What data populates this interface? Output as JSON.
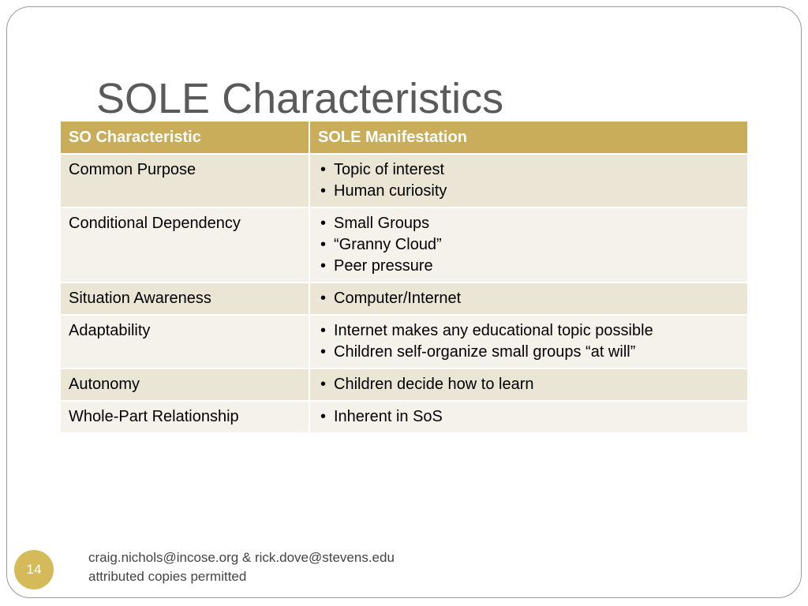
{
  "slide": {
    "title": "SOLE Characteristics",
    "page_number": "14",
    "footer_line1": "craig.nichols@incose.org & rick.dove@stevens.edu",
    "footer_line2": "attributed copies permitted"
  },
  "table": {
    "headers": [
      "SO Characteristic",
      "SOLE Manifestation"
    ],
    "bullet_glyph": "•",
    "rows": [
      {
        "characteristic": "Common Purpose",
        "manifestations": [
          "Topic of interest",
          "Human curiosity"
        ]
      },
      {
        "characteristic": "Conditional Dependency",
        "manifestations": [
          "Small Groups",
          "“Granny Cloud”",
          "Peer pressure"
        ]
      },
      {
        "characteristic": "Situation Awareness",
        "manifestations": [
          "Computer/Internet"
        ]
      },
      {
        "characteristic": "Adaptability",
        "manifestations": [
          "Internet makes any educational topic possible",
          "Children self-organize small groups “at will”"
        ]
      },
      {
        "characteristic": "Autonomy",
        "manifestations": [
          "Children decide how to learn"
        ]
      },
      {
        "characteristic": "Whole-Part Relationship",
        "manifestations": [
          "Inherent in SoS"
        ]
      }
    ]
  },
  "colors": {
    "header_fill": "#c9ad5a",
    "band_dark": "#ebe5d6",
    "band_light": "#f5f2ec",
    "badge_fill": "#d5ba5a",
    "title_text": "#5a5a5a"
  }
}
